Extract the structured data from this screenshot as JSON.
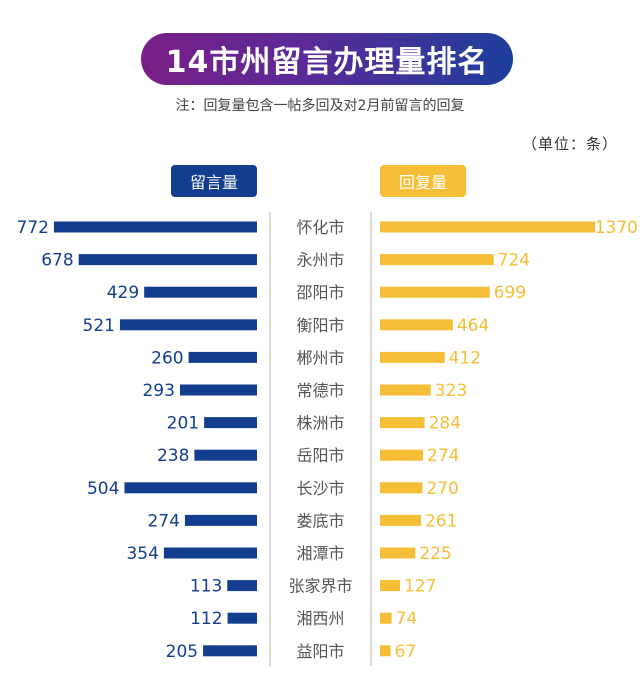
{
  "title": "14市州留言办理量排名",
  "note": "注：回复量包含一帖多回及对2月前留言的回复",
  "unit": "（单位：条）",
  "colors": {
    "messages": "#133d8e",
    "replies": "#f6bd36",
    "divider": "#b5b5b5",
    "city_text": "#555555"
  },
  "chart_data": {
    "type": "bar",
    "orientation": "horizontal",
    "layout": "back-to-back",
    "categories": [
      "怀化市",
      "永州市",
      "邵阳市",
      "衡阳市",
      "郴州市",
      "常德市",
      "株洲市",
      "岳阳市",
      "长沙市",
      "娄底市",
      "湘潭市",
      "张家界市",
      "湘西州",
      "益阳市"
    ],
    "series": [
      {
        "name": "留言量",
        "color": "#133d8e",
        "side": "left",
        "values": [
          772,
          678,
          429,
          521,
          260,
          293,
          201,
          238,
          504,
          274,
          354,
          113,
          112,
          205
        ]
      },
      {
        "name": "回复量",
        "color": "#f6bd36",
        "side": "right",
        "values": [
          1370,
          724,
          699,
          464,
          412,
          323,
          284,
          274,
          270,
          261,
          225,
          127,
          74,
          67
        ]
      }
    ]
  }
}
